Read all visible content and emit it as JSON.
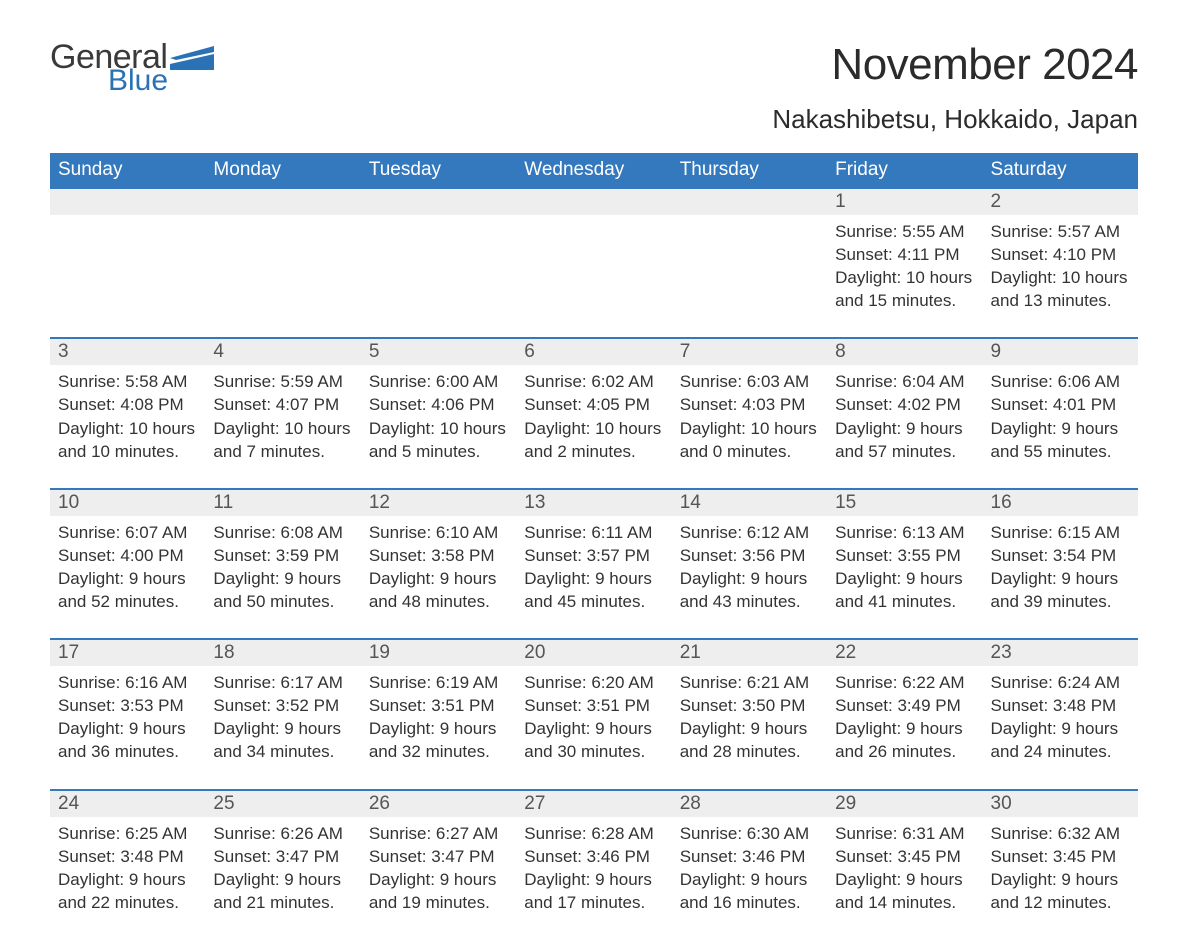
{
  "logo": {
    "word1": "General",
    "word2": "Blue",
    "flag_color": "#2a72b5"
  },
  "title": "November 2024",
  "location": "Nakashibetsu, Hokkaido, Japan",
  "colors": {
    "header_bg": "#3478bd",
    "header_text": "#ffffff",
    "daynum_bg": "#eeeeee",
    "daynum_text": "#555555",
    "body_text": "#333333",
    "row_border": "#3478bd",
    "background": "#ffffff"
  },
  "weekdays": [
    "Sunday",
    "Monday",
    "Tuesday",
    "Wednesday",
    "Thursday",
    "Friday",
    "Saturday"
  ],
  "weeks": [
    [
      null,
      null,
      null,
      null,
      null,
      {
        "n": "1",
        "sr": "Sunrise: 5:55 AM",
        "ss": "Sunset: 4:11 PM",
        "d1": "Daylight: 10 hours",
        "d2": "and 15 minutes."
      },
      {
        "n": "2",
        "sr": "Sunrise: 5:57 AM",
        "ss": "Sunset: 4:10 PM",
        "d1": "Daylight: 10 hours",
        "d2": "and 13 minutes."
      }
    ],
    [
      {
        "n": "3",
        "sr": "Sunrise: 5:58 AM",
        "ss": "Sunset: 4:08 PM",
        "d1": "Daylight: 10 hours",
        "d2": "and 10 minutes."
      },
      {
        "n": "4",
        "sr": "Sunrise: 5:59 AM",
        "ss": "Sunset: 4:07 PM",
        "d1": "Daylight: 10 hours",
        "d2": "and 7 minutes."
      },
      {
        "n": "5",
        "sr": "Sunrise: 6:00 AM",
        "ss": "Sunset: 4:06 PM",
        "d1": "Daylight: 10 hours",
        "d2": "and 5 minutes."
      },
      {
        "n": "6",
        "sr": "Sunrise: 6:02 AM",
        "ss": "Sunset: 4:05 PM",
        "d1": "Daylight: 10 hours",
        "d2": "and 2 minutes."
      },
      {
        "n": "7",
        "sr": "Sunrise: 6:03 AM",
        "ss": "Sunset: 4:03 PM",
        "d1": "Daylight: 10 hours",
        "d2": "and 0 minutes."
      },
      {
        "n": "8",
        "sr": "Sunrise: 6:04 AM",
        "ss": "Sunset: 4:02 PM",
        "d1": "Daylight: 9 hours",
        "d2": "and 57 minutes."
      },
      {
        "n": "9",
        "sr": "Sunrise: 6:06 AM",
        "ss": "Sunset: 4:01 PM",
        "d1": "Daylight: 9 hours",
        "d2": "and 55 minutes."
      }
    ],
    [
      {
        "n": "10",
        "sr": "Sunrise: 6:07 AM",
        "ss": "Sunset: 4:00 PM",
        "d1": "Daylight: 9 hours",
        "d2": "and 52 minutes."
      },
      {
        "n": "11",
        "sr": "Sunrise: 6:08 AM",
        "ss": "Sunset: 3:59 PM",
        "d1": "Daylight: 9 hours",
        "d2": "and 50 minutes."
      },
      {
        "n": "12",
        "sr": "Sunrise: 6:10 AM",
        "ss": "Sunset: 3:58 PM",
        "d1": "Daylight: 9 hours",
        "d2": "and 48 minutes."
      },
      {
        "n": "13",
        "sr": "Sunrise: 6:11 AM",
        "ss": "Sunset: 3:57 PM",
        "d1": "Daylight: 9 hours",
        "d2": "and 45 minutes."
      },
      {
        "n": "14",
        "sr": "Sunrise: 6:12 AM",
        "ss": "Sunset: 3:56 PM",
        "d1": "Daylight: 9 hours",
        "d2": "and 43 minutes."
      },
      {
        "n": "15",
        "sr": "Sunrise: 6:13 AM",
        "ss": "Sunset: 3:55 PM",
        "d1": "Daylight: 9 hours",
        "d2": "and 41 minutes."
      },
      {
        "n": "16",
        "sr": "Sunrise: 6:15 AM",
        "ss": "Sunset: 3:54 PM",
        "d1": "Daylight: 9 hours",
        "d2": "and 39 minutes."
      }
    ],
    [
      {
        "n": "17",
        "sr": "Sunrise: 6:16 AM",
        "ss": "Sunset: 3:53 PM",
        "d1": "Daylight: 9 hours",
        "d2": "and 36 minutes."
      },
      {
        "n": "18",
        "sr": "Sunrise: 6:17 AM",
        "ss": "Sunset: 3:52 PM",
        "d1": "Daylight: 9 hours",
        "d2": "and 34 minutes."
      },
      {
        "n": "19",
        "sr": "Sunrise: 6:19 AM",
        "ss": "Sunset: 3:51 PM",
        "d1": "Daylight: 9 hours",
        "d2": "and 32 minutes."
      },
      {
        "n": "20",
        "sr": "Sunrise: 6:20 AM",
        "ss": "Sunset: 3:51 PM",
        "d1": "Daylight: 9 hours",
        "d2": "and 30 minutes."
      },
      {
        "n": "21",
        "sr": "Sunrise: 6:21 AM",
        "ss": "Sunset: 3:50 PM",
        "d1": "Daylight: 9 hours",
        "d2": "and 28 minutes."
      },
      {
        "n": "22",
        "sr": "Sunrise: 6:22 AM",
        "ss": "Sunset: 3:49 PM",
        "d1": "Daylight: 9 hours",
        "d2": "and 26 minutes."
      },
      {
        "n": "23",
        "sr": "Sunrise: 6:24 AM",
        "ss": "Sunset: 3:48 PM",
        "d1": "Daylight: 9 hours",
        "d2": "and 24 minutes."
      }
    ],
    [
      {
        "n": "24",
        "sr": "Sunrise: 6:25 AM",
        "ss": "Sunset: 3:48 PM",
        "d1": "Daylight: 9 hours",
        "d2": "and 22 minutes."
      },
      {
        "n": "25",
        "sr": "Sunrise: 6:26 AM",
        "ss": "Sunset: 3:47 PM",
        "d1": "Daylight: 9 hours",
        "d2": "and 21 minutes."
      },
      {
        "n": "26",
        "sr": "Sunrise: 6:27 AM",
        "ss": "Sunset: 3:47 PM",
        "d1": "Daylight: 9 hours",
        "d2": "and 19 minutes."
      },
      {
        "n": "27",
        "sr": "Sunrise: 6:28 AM",
        "ss": "Sunset: 3:46 PM",
        "d1": "Daylight: 9 hours",
        "d2": "and 17 minutes."
      },
      {
        "n": "28",
        "sr": "Sunrise: 6:30 AM",
        "ss": "Sunset: 3:46 PM",
        "d1": "Daylight: 9 hours",
        "d2": "and 16 minutes."
      },
      {
        "n": "29",
        "sr": "Sunrise: 6:31 AM",
        "ss": "Sunset: 3:45 PM",
        "d1": "Daylight: 9 hours",
        "d2": "and 14 minutes."
      },
      {
        "n": "30",
        "sr": "Sunrise: 6:32 AM",
        "ss": "Sunset: 3:45 PM",
        "d1": "Daylight: 9 hours",
        "d2": "and 12 minutes."
      }
    ]
  ]
}
